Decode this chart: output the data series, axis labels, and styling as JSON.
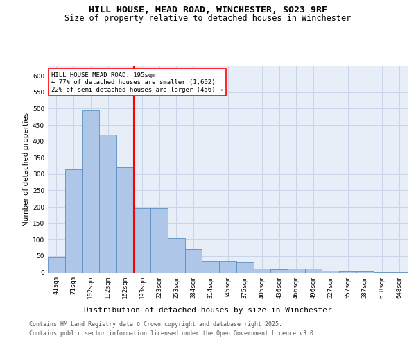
{
  "title": "HILL HOUSE, MEAD ROAD, WINCHESTER, SO23 9RF",
  "subtitle": "Size of property relative to detached houses in Winchester",
  "xlabel": "Distribution of detached houses by size in Winchester",
  "ylabel": "Number of detached properties",
  "categories": [
    "41sqm",
    "71sqm",
    "102sqm",
    "132sqm",
    "162sqm",
    "193sqm",
    "223sqm",
    "253sqm",
    "284sqm",
    "314sqm",
    "345sqm",
    "375sqm",
    "405sqm",
    "436sqm",
    "466sqm",
    "496sqm",
    "527sqm",
    "557sqm",
    "587sqm",
    "618sqm",
    "648sqm"
  ],
  "values": [
    45,
    315,
    495,
    420,
    320,
    195,
    195,
    105,
    70,
    35,
    35,
    30,
    12,
    10,
    12,
    12,
    5,
    3,
    3,
    2,
    1
  ],
  "bar_color": "#aec6e8",
  "bar_edge_color": "#5a8fc0",
  "grid_color": "#c8d4e8",
  "background_color": "#e8eef8",
  "vline_label": "HILL HOUSE MEAD ROAD: 195sqm",
  "annotation_line1": "← 77% of detached houses are smaller (1,602)",
  "annotation_line2": "22% of semi-detached houses are larger (456) →",
  "annotation_box_color": "white",
  "annotation_box_edge_color": "red",
  "vline_color": "red",
  "footer_line1": "Contains HM Land Registry data © Crown copyright and database right 2025.",
  "footer_line2": "Contains public sector information licensed under the Open Government Licence v3.0.",
  "ylim": [
    0,
    630
  ],
  "yticks": [
    0,
    50,
    100,
    150,
    200,
    250,
    300,
    350,
    400,
    450,
    500,
    550,
    600
  ],
  "title_fontsize": 9.5,
  "subtitle_fontsize": 8.5,
  "xlabel_fontsize": 8,
  "ylabel_fontsize": 7.5,
  "tick_fontsize": 6.5,
  "annotation_fontsize": 6.5,
  "footer_fontsize": 6
}
